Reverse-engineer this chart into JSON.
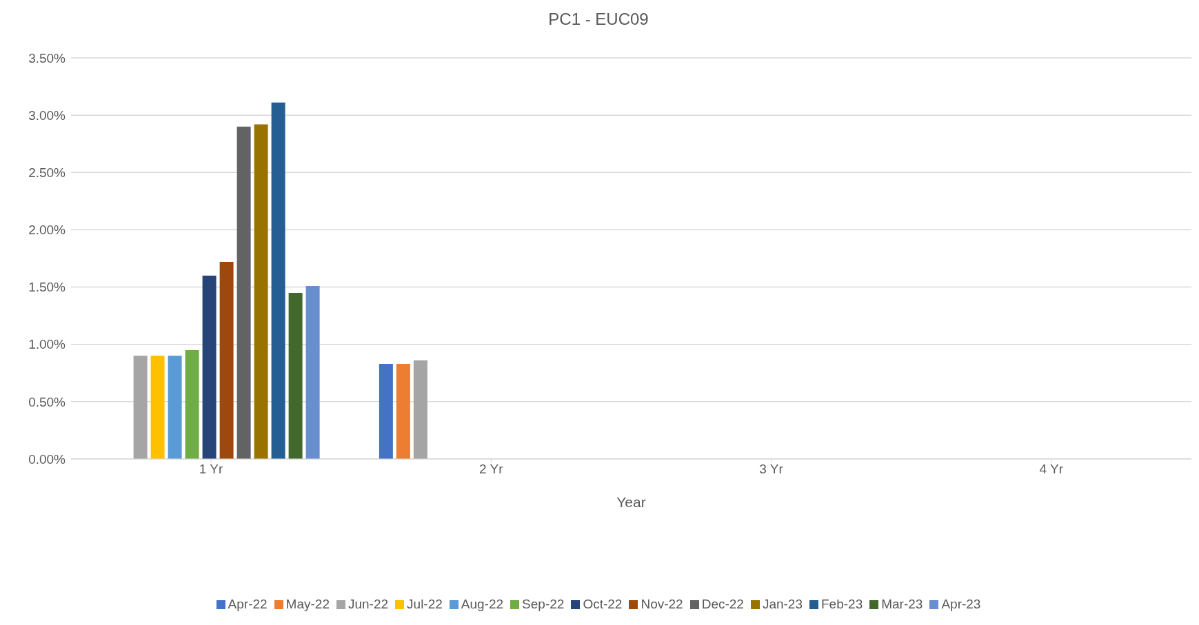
{
  "chart_data": {
    "type": "bar",
    "title": "PC1 - EUC09",
    "xlabel": "Year",
    "categories": [
      "1 Yr",
      "2 Yr",
      "3 Yr",
      "4 Yr"
    ],
    "series": [
      {
        "name": "Apr-22",
        "color": "#4472c4",
        "values": [
          null,
          0.83,
          null,
          null
        ]
      },
      {
        "name": "May-22",
        "color": "#ed7d31",
        "values": [
          null,
          0.83,
          null,
          null
        ]
      },
      {
        "name": "Jun-22",
        "color": "#a5a5a5",
        "values": [
          0.9,
          0.86,
          null,
          null
        ]
      },
      {
        "name": "Jul-22",
        "color": "#ffc000",
        "values": [
          0.9,
          null,
          null,
          null
        ]
      },
      {
        "name": "Aug-22",
        "color": "#5b9bd5",
        "values": [
          0.9,
          null,
          null,
          null
        ]
      },
      {
        "name": "Sep-22",
        "color": "#70ad47",
        "values": [
          0.95,
          null,
          null,
          null
        ]
      },
      {
        "name": "Oct-22",
        "color": "#264478",
        "values": [
          1.6,
          null,
          null,
          null
        ]
      },
      {
        "name": "Nov-22",
        "color": "#9e480e",
        "values": [
          1.72,
          null,
          null,
          null
        ]
      },
      {
        "name": "Dec-22",
        "color": "#636363",
        "values": [
          2.9,
          null,
          null,
          null
        ]
      },
      {
        "name": "Jan-23",
        "color": "#997300",
        "values": [
          2.92,
          null,
          null,
          null
        ]
      },
      {
        "name": "Feb-23",
        "color": "#255e91",
        "values": [
          3.11,
          null,
          null,
          null
        ]
      },
      {
        "name": "Mar-23",
        "color": "#43682b",
        "values": [
          1.45,
          null,
          null,
          null
        ]
      },
      {
        "name": "Apr-23",
        "color": "#698ed0",
        "values": [
          1.51,
          null,
          null,
          null
        ]
      }
    ],
    "ylim": [
      0,
      3.5
    ],
    "yticks": [
      {
        "value": 0,
        "label": "0.00%"
      },
      {
        "value": 0.5,
        "label": "0.50%"
      },
      {
        "value": 1,
        "label": "1.00%"
      },
      {
        "value": 1.5,
        "label": "1.50%"
      },
      {
        "value": 2,
        "label": "2.00%"
      },
      {
        "value": 2.5,
        "label": "2.50%"
      },
      {
        "value": 3,
        "label": "3.00%"
      },
      {
        "value": 3.5,
        "label": "3.50%"
      }
    ],
    "grid": "y",
    "legend": "bottom"
  }
}
